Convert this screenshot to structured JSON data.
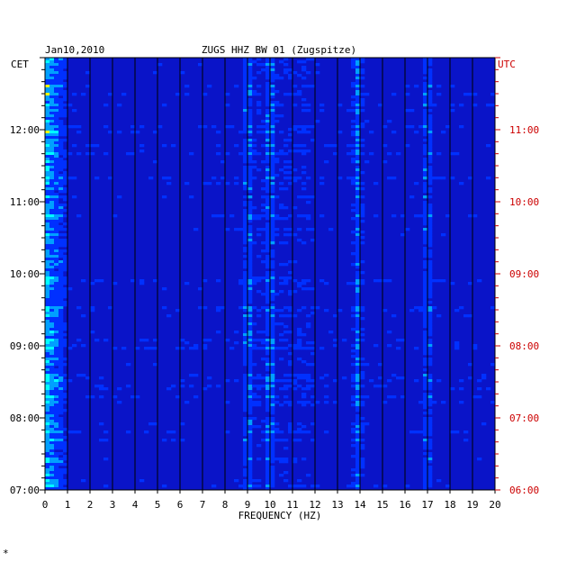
{
  "chart_data": {
    "type": "heatmap",
    "date": "Jan10,2010",
    "title": "ZUGS HHZ BW 01 (Zugspitze)",
    "xlabel": "FREQUENCY (HZ)",
    "left_axis_label": "CET",
    "right_axis_label": "UTC",
    "xlim": [
      0,
      20
    ],
    "x_ticks": [
      "0",
      "1",
      "2",
      "3",
      "4",
      "5",
      "6",
      "7",
      "8",
      "9",
      "10",
      "11",
      "12",
      "13",
      "14",
      "15",
      "16",
      "17",
      "18",
      "19",
      "20"
    ],
    "cet_ticks": [
      "07:00",
      "08:00",
      "09:00",
      "10:00",
      "11:00",
      "12:00"
    ],
    "utc_ticks": [
      "06:00",
      "07:00",
      "08:00",
      "09:00",
      "10:00",
      "11:00"
    ],
    "time_range_cet_hours": [
      7,
      13
    ],
    "background_color": "#0a14c8",
    "persistent_lines_hz": [
      9.0,
      10.0,
      13.9,
      17.0
    ],
    "colormap": [
      "#0010a0",
      "#0030ff",
      "#00a0ff",
      "#00ffff",
      "#ffff00",
      "#ff0000"
    ],
    "footnote": "*"
  }
}
